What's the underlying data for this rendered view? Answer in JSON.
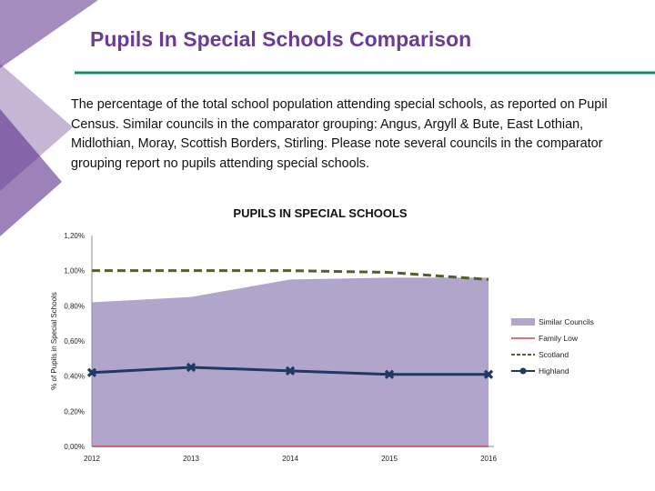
{
  "slide": {
    "title": "Pupils In Special Schools Comparison",
    "description": "The percentage of the total school population attending special schools, as reported on Pupil Census.  Similar councils in the comparator grouping: Angus, Argyll & Bute, East Lothian, Midlothian, Moray, Scottish Borders, Stirling. Please note several councils in the comparator grouping report no pupils attending special schools."
  },
  "colors": {
    "title": "#6a3d93",
    "decoration": "#5b2d8a",
    "rule": "#1a8a6e",
    "similar_area": "#b1a5cb",
    "family_low": "#c94a4a",
    "scotland": "#4f6228",
    "highland": "#1f3864"
  },
  "chart_data": {
    "type": "area",
    "title": "PUPILS IN SPECIAL SCHOOLS",
    "ylabel": "% of Pupils in Special Schools",
    "xlabel": "",
    "categories": [
      "2012",
      "2013",
      "2014",
      "2015",
      "2016"
    ],
    "ylim": [
      0,
      1.2
    ],
    "yticks": [
      0,
      0.2,
      0.4,
      0.6,
      0.8,
      1.0,
      1.2
    ],
    "ytick_labels": [
      "0,00%",
      "0,20%",
      "0,40%",
      "0,60%",
      "0,80%",
      "1,00%",
      "1,20%"
    ],
    "series": [
      {
        "name": "Similar Councils",
        "kind": "area",
        "values": [
          0.82,
          0.85,
          0.95,
          0.96,
          0.96
        ]
      },
      {
        "name": "Family Low",
        "kind": "line",
        "values": [
          0.0,
          0.0,
          0.0,
          0.0,
          0.0
        ]
      },
      {
        "name": "Scotland",
        "kind": "dashed-line",
        "values": [
          1.0,
          1.0,
          1.0,
          0.99,
          0.95
        ]
      },
      {
        "name": "Highland",
        "kind": "marker-line",
        "values": [
          0.42,
          0.45,
          0.43,
          0.41,
          0.41
        ]
      }
    ],
    "legend": [
      "Similar Councils",
      "Family Low",
      "Scotland",
      "Highland"
    ],
    "legend_position": "right"
  }
}
